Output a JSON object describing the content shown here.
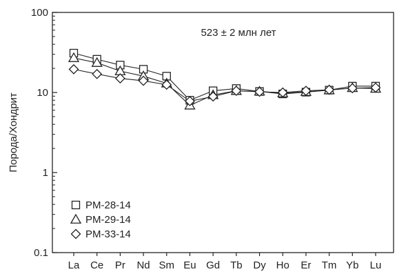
{
  "chart_data": {
    "type": "line",
    "title": "",
    "xlabel": "",
    "ylabel": "Порода/Хондрит",
    "y_scale": "log",
    "ylim": [
      0.1,
      100
    ],
    "y_ticks": [
      "0.1",
      "1",
      "10",
      "100"
    ],
    "categories": [
      "La",
      "Ce",
      "Pr",
      "Nd",
      "Sm",
      "Eu",
      "Gd",
      "Tb",
      "Dy",
      "Ho",
      "Er",
      "Tm",
      "Yb",
      "Lu"
    ],
    "annotation": "523 ± 2 млн лет",
    "grid": false,
    "legend_position": "bottom-left",
    "series": [
      {
        "name": "PM-28-14",
        "marker": "square",
        "values": [
          31,
          26,
          22,
          19.5,
          16,
          8,
          10.5,
          11.2,
          10.3,
          9.6,
          10.1,
          10.7,
          12,
          12
        ]
      },
      {
        "name": "PM-29-14",
        "marker": "triangle",
        "values": [
          27,
          23.5,
          18.5,
          16,
          13,
          6.9,
          9.3,
          10.5,
          10.3,
          9.8,
          10.2,
          10.7,
          11.4,
          11.2
        ]
      },
      {
        "name": "PM-33-14",
        "marker": "diamond",
        "values": [
          19.5,
          17,
          15,
          14,
          12.5,
          7.8,
          8.9,
          10.5,
          10.2,
          10,
          10.5,
          10.8,
          11.3,
          11.5
        ]
      }
    ]
  }
}
